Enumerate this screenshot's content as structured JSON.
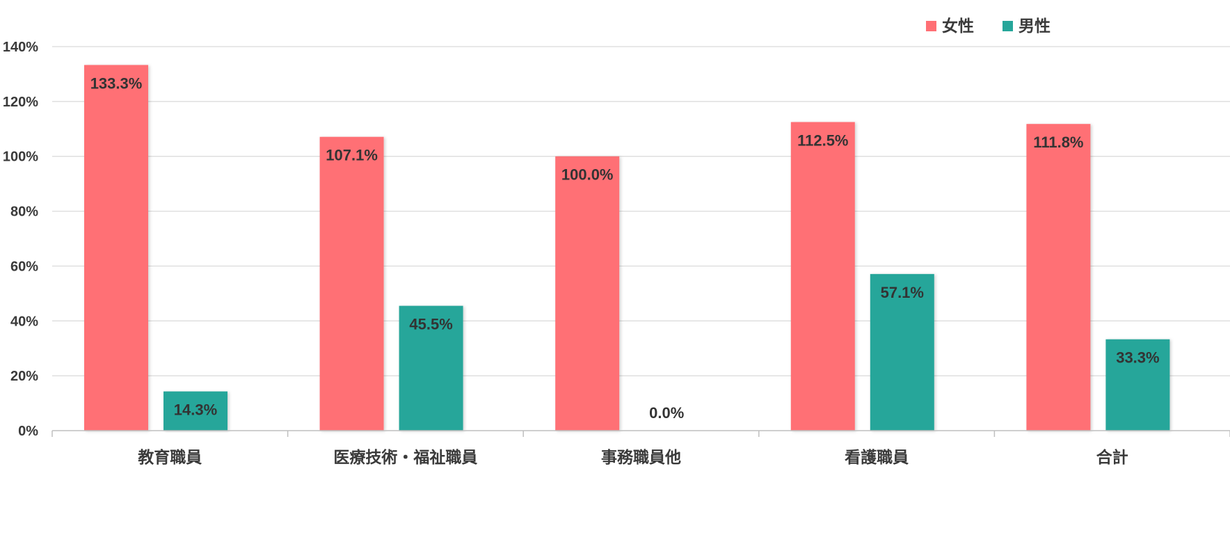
{
  "chart_data": {
    "type": "bar",
    "categories": [
      "教育職員",
      "医療技術・福祉職員",
      "事務職員他",
      "看護職員",
      "合計"
    ],
    "series": [
      {
        "name": "女性",
        "color": "#FF6F74",
        "values": [
          133.3,
          107.1,
          100.0,
          112.5,
          111.8
        ],
        "labels": [
          "133.3%",
          "107.1%",
          "100.0%",
          "112.5%",
          "111.8%"
        ]
      },
      {
        "name": "男性",
        "color": "#26A69A",
        "values": [
          14.3,
          45.5,
          0.0,
          57.1,
          33.3
        ],
        "labels": [
          "14.3%",
          "45.5%",
          "0.0%",
          "57.1%",
          "33.3%"
        ]
      }
    ],
    "ylim": [
      0,
      140
    ],
    "yticks": [
      0,
      20,
      40,
      60,
      80,
      100,
      120,
      140
    ],
    "ytick_labels": [
      "0%",
      "20%",
      "40%",
      "60%",
      "80%",
      "100%",
      "120%",
      "140%"
    ],
    "grid": true,
    "legend_position": "top-right",
    "title": "",
    "xlabel": "",
    "ylabel": ""
  }
}
